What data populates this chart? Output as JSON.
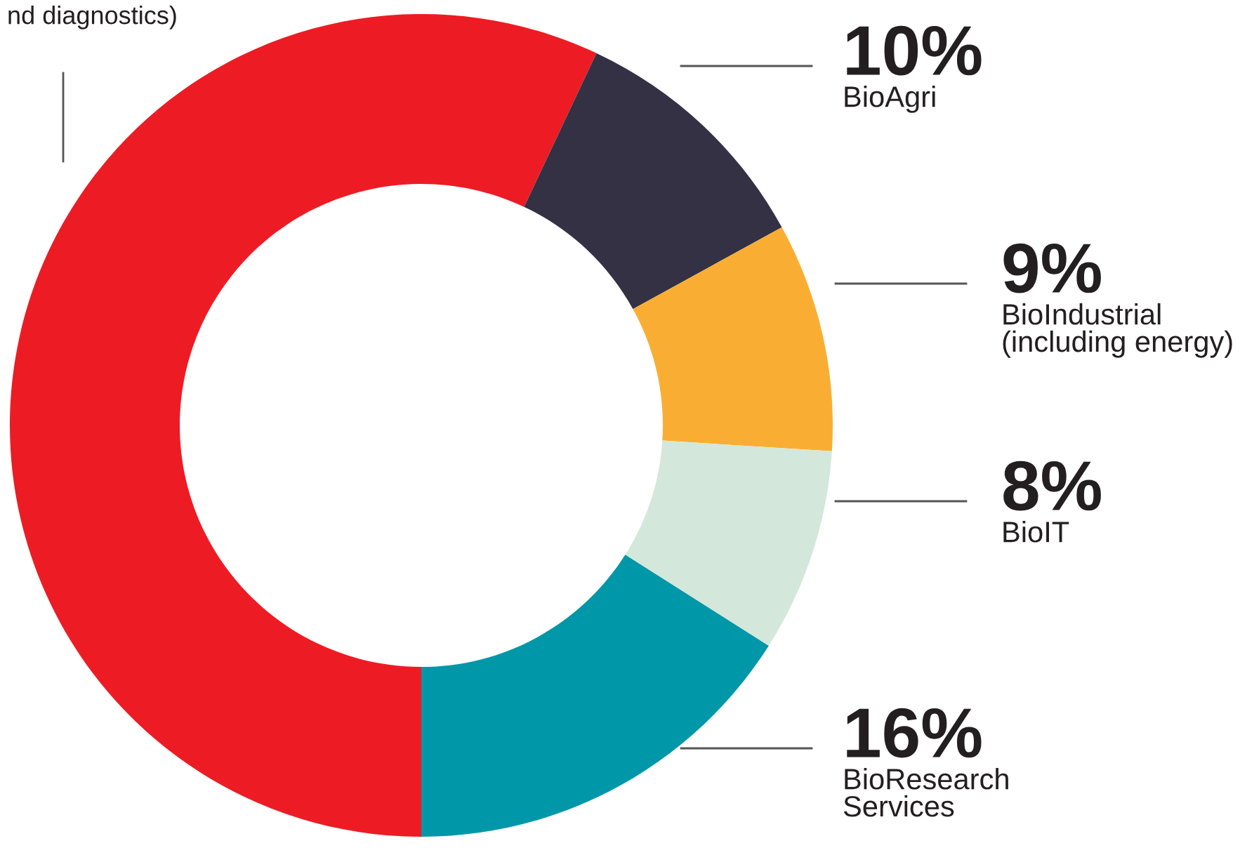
{
  "chart_data": {
    "type": "donut",
    "categories": [
      "nd diagnostics)",
      "BioAgri",
      "BioIndustrial\n(including energy)",
      "BioIT",
      "BioResearch\nServices"
    ],
    "values": [
      57,
      10,
      9,
      8,
      16
    ],
    "value_labels": [
      null,
      "10%",
      "9%",
      "8%",
      "16%"
    ],
    "colors": [
      "#ed1c24",
      "#333143",
      "#f9ae33",
      "#d3e8da",
      "#0097a9"
    ],
    "legend": false
  }
}
